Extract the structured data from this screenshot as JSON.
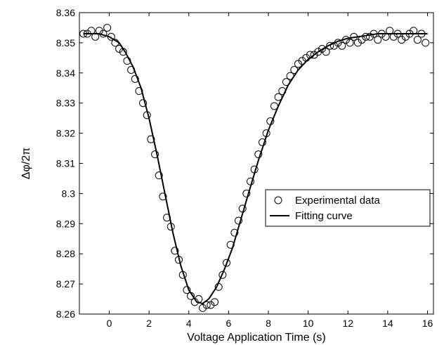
{
  "chart_data": {
    "type": "scatter",
    "xlabel": "Voltage Application Time (s)",
    "ylabel": "Δφ/2π",
    "xlim": [
      -1.5,
      16.3
    ],
    "ylim": [
      8.26,
      8.36
    ],
    "xticks": [
      0,
      2,
      4,
      6,
      8,
      10,
      12,
      14,
      16
    ],
    "yticks": [
      8.26,
      8.27,
      8.28,
      8.29,
      8.3,
      8.31,
      8.32,
      8.33,
      8.34,
      8.35,
      8.36
    ],
    "ytick_labels": [
      "8.26",
      "8.27",
      "8.28",
      "8.29",
      "8.3",
      "8.31",
      "8.32",
      "8.33",
      "8.34",
      "8.35",
      "8.36"
    ],
    "legend_position": "center-right",
    "grid": false,
    "series": [
      {
        "name": "Experimental data",
        "kind": "markers",
        "marker": "open-circle",
        "color": "#000000",
        "x": [
          -1.3,
          -1.1,
          -0.9,
          -0.7,
          -0.5,
          -0.3,
          -0.1,
          0.1,
          0.3,
          0.5,
          0.7,
          0.9,
          1.1,
          1.3,
          1.5,
          1.7,
          1.9,
          2.1,
          2.3,
          2.5,
          2.7,
          2.9,
          3.1,
          3.3,
          3.5,
          3.7,
          3.9,
          4.1,
          4.3,
          4.5,
          4.7,
          4.9,
          5.1,
          5.3,
          5.5,
          5.7,
          5.9,
          6.1,
          6.3,
          6.5,
          6.7,
          6.9,
          7.1,
          7.3,
          7.5,
          7.7,
          7.9,
          8.1,
          8.3,
          8.5,
          8.7,
          8.9,
          9.1,
          9.3,
          9.5,
          9.7,
          9.9,
          10.1,
          10.3,
          10.5,
          10.7,
          10.9,
          11.1,
          11.3,
          11.5,
          11.7,
          11.9,
          12.1,
          12.3,
          12.5,
          12.7,
          12.9,
          13.1,
          13.3,
          13.5,
          13.7,
          13.9,
          14.1,
          14.3,
          14.5,
          14.7,
          14.9,
          15.1,
          15.3,
          15.5,
          15.7,
          15.9
        ],
        "y": [
          8.353,
          8.353,
          8.354,
          8.352,
          8.354,
          8.353,
          8.355,
          8.352,
          8.35,
          8.348,
          8.347,
          8.344,
          8.341,
          8.338,
          8.334,
          8.33,
          8.326,
          8.318,
          8.313,
          8.306,
          8.299,
          8.292,
          8.289,
          8.281,
          8.278,
          8.273,
          8.268,
          8.266,
          8.264,
          8.265,
          8.262,
          8.263,
          8.263,
          8.264,
          8.269,
          8.273,
          8.277,
          8.283,
          8.287,
          8.291,
          8.295,
          8.3,
          8.304,
          8.308,
          8.313,
          8.317,
          8.32,
          8.324,
          8.329,
          8.332,
          8.334,
          8.337,
          8.339,
          8.341,
          8.343,
          8.344,
          8.345,
          8.346,
          8.346,
          8.347,
          8.348,
          8.347,
          8.349,
          8.349,
          8.35,
          8.349,
          8.351,
          8.35,
          8.352,
          8.35,
          8.351,
          8.352,
          8.352,
          8.353,
          8.351,
          8.353,
          8.352,
          8.354,
          8.352,
          8.353,
          8.351,
          8.352,
          8.353,
          8.354,
          8.351,
          8.353,
          8.35
        ]
      },
      {
        "name": "Fitting curve",
        "kind": "line",
        "color": "#000000",
        "x": [
          -1.3,
          -1.0,
          -0.5,
          0.0,
          0.5,
          0.8,
          1.2,
          1.6,
          2.0,
          2.4,
          2.8,
          3.2,
          3.6,
          4.0,
          4.4,
          4.7,
          5.0,
          5.4,
          5.8,
          6.2,
          6.6,
          7.0,
          7.5,
          8.0,
          8.5,
          9.0,
          9.5,
          10.0,
          10.5,
          11.0,
          11.5,
          12.0,
          12.5,
          13.0,
          13.5,
          14.0,
          14.5,
          15.0,
          15.5,
          16.0
        ],
        "y": [
          8.353,
          8.353,
          8.353,
          8.352,
          8.35,
          8.347,
          8.342,
          8.335,
          8.325,
          8.313,
          8.3,
          8.287,
          8.276,
          8.268,
          8.264,
          8.2635,
          8.265,
          8.269,
          8.275,
          8.282,
          8.291,
          8.3,
          8.311,
          8.321,
          8.329,
          8.336,
          8.341,
          8.3445,
          8.347,
          8.349,
          8.3505,
          8.3515,
          8.352,
          8.3525,
          8.353,
          8.353,
          8.353,
          8.353,
          8.353,
          8.353
        ]
      }
    ]
  }
}
